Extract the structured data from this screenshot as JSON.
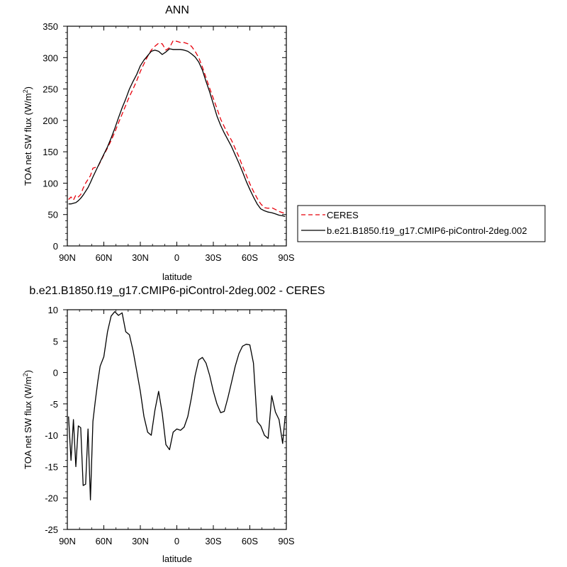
{
  "chart_data": [
    {
      "type": "line",
      "title": "ANN",
      "xlabel": "latitude",
      "ylabel": "TOA net SW flux (W/m",
      "ylabel_sup": "2",
      "ylabel_tail": ")",
      "xlim": [
        90,
        -90
      ],
      "ylim": [
        0,
        350
      ],
      "xticks": [
        90,
        60,
        30,
        0,
        -30,
        -60,
        -90
      ],
      "xtick_labels": [
        "90N",
        "60N",
        "30N",
        "0",
        "30S",
        "60S",
        "90S"
      ],
      "yticks": [
        0,
        50,
        100,
        150,
        200,
        250,
        300,
        350
      ],
      "ytick_labels": [
        "0",
        "50",
        "100",
        "150",
        "200",
        "250",
        "300",
        "350"
      ],
      "legend_placement": "right",
      "series": [
        {
          "name": "CERES",
          "color": "#e8000b",
          "dash": "dashed",
          "x": [
            89,
            87,
            85,
            83,
            81,
            79,
            77,
            75,
            73,
            71,
            69,
            67,
            65,
            63,
            60,
            57,
            54,
            51,
            48,
            45,
            42,
            39,
            36,
            33,
            30,
            27,
            24,
            21,
            18,
            15,
            12,
            9,
            6,
            3,
            0,
            -3,
            -6,
            -9,
            -12,
            -15,
            -18,
            -21,
            -24,
            -27,
            -30,
            -33,
            -36,
            -39,
            -42,
            -45,
            -48,
            -51,
            -54,
            -57,
            -60,
            -63,
            -66,
            -69,
            -72,
            -75,
            -78,
            -81,
            -84,
            -87,
            -89
          ],
          "y": [
            74,
            78,
            73,
            81,
            78,
            82,
            92,
            100,
            106,
            112,
            124,
            125,
            126,
            133,
            145,
            156,
            168,
            181,
            196,
            210,
            224,
            238,
            250,
            263,
            278,
            290,
            302,
            312,
            318,
            323,
            322,
            312,
            316,
            327,
            326,
            324,
            324,
            322,
            318,
            310,
            300,
            285,
            268,
            251,
            235,
            219,
            202,
            190,
            178,
            168,
            155,
            142,
            127,
            113,
            99,
            87,
            76,
            67,
            61,
            60,
            61,
            58,
            55,
            53,
            52
          ]
        },
        {
          "name": "b.e21.B1850.f19_g17.CMIP6-piControl-2deg.002",
          "color": "#000000",
          "dash": "solid",
          "x": [
            89,
            87,
            85,
            83,
            81,
            79,
            77,
            75,
            73,
            71,
            69,
            67,
            65,
            63,
            60,
            57,
            54,
            51,
            48,
            45,
            42,
            39,
            36,
            33,
            30,
            27,
            24,
            21,
            18,
            15,
            12,
            9,
            6,
            3,
            0,
            -3,
            -6,
            -9,
            -12,
            -15,
            -18,
            -21,
            -24,
            -27,
            -30,
            -33,
            -36,
            -39,
            -42,
            -45,
            -48,
            -51,
            -54,
            -57,
            -60,
            -63,
            -66,
            -69,
            -72,
            -75,
            -78,
            -81,
            -84,
            -87,
            -89
          ],
          "y": [
            67,
            67,
            68,
            69,
            72,
            76,
            81,
            87,
            93,
            101,
            110,
            118,
            126,
            134,
            146,
            158,
            172,
            187,
            204,
            220,
            234,
            250,
            262,
            273,
            287,
            296,
            303,
            310,
            312,
            310,
            305,
            309,
            314,
            313,
            313,
            313,
            312,
            310,
            306,
            301,
            293,
            280,
            262,
            245,
            226,
            207,
            192,
            180,
            169,
            158,
            145,
            132,
            118,
            103,
            90,
            78,
            67,
            59,
            56,
            54,
            53,
            51,
            49,
            48,
            47
          ]
        }
      ]
    },
    {
      "type": "line",
      "title": "b.e21.B1850.f19_g17.CMIP6-piControl-2deg.002 - CERES",
      "xlabel": "latitude",
      "ylabel": "TOA net SW flux (W/m",
      "ylabel_sup": "2",
      "ylabel_tail": ")",
      "xlim": [
        90,
        -90
      ],
      "ylim": [
        -25,
        10
      ],
      "xticks": [
        90,
        60,
        30,
        0,
        -30,
        -60,
        -90
      ],
      "xtick_labels": [
        "90N",
        "60N",
        "30N",
        "0",
        "30S",
        "60S",
        "90S"
      ],
      "yticks": [
        -25,
        -20,
        -15,
        -10,
        -5,
        0,
        5,
        10
      ],
      "ytick_labels": [
        "-25",
        "-20",
        "-15",
        "-10",
        "-5",
        "0",
        "5",
        "10"
      ],
      "series": [
        {
          "color": "#000000",
          "dash": "solid",
          "x": [
            89,
            87,
            85,
            83,
            81,
            79,
            77,
            75,
            73,
            71,
            69,
            67,
            65,
            63,
            60,
            57,
            54,
            51,
            48,
            45,
            42,
            39,
            36,
            33,
            30,
            27,
            24,
            21,
            18,
            15,
            12,
            9,
            6,
            3,
            0,
            -3,
            -6,
            -9,
            -12,
            -15,
            -18,
            -21,
            -24,
            -27,
            -30,
            -33,
            -36,
            -39,
            -42,
            -45,
            -48,
            -51,
            -54,
            -57,
            -60,
            -63,
            -66,
            -69,
            -72,
            -75,
            -78,
            -81,
            -84,
            -87,
            -89
          ],
          "y": [
            -7.0,
            -14.0,
            -7.5,
            -15.0,
            -8.5,
            -8.8,
            -18.0,
            -17.8,
            -9.0,
            -20.3,
            -7.8,
            -4.5,
            -1.5,
            1.0,
            2.5,
            6.5,
            9.0,
            9.7,
            9.1,
            9.5,
            6.5,
            6.0,
            3.5,
            0.3,
            -3.0,
            -7.0,
            -9.5,
            -10.0,
            -6.0,
            -3.0,
            -6.5,
            -11.5,
            -12.3,
            -9.5,
            -9.0,
            -9.2,
            -8.7,
            -7.0,
            -4.0,
            -0.5,
            2.0,
            2.4,
            1.5,
            -0.5,
            -3.0,
            -5.0,
            -6.4,
            -6.2,
            -4.0,
            -1.5,
            1.0,
            3.0,
            4.2,
            4.5,
            4.4,
            1.5,
            -7.8,
            -8.5,
            -10.0,
            -10.5,
            -3.7,
            -6.3,
            -7.5,
            -11.3,
            -7.0
          ]
        }
      ]
    }
  ]
}
